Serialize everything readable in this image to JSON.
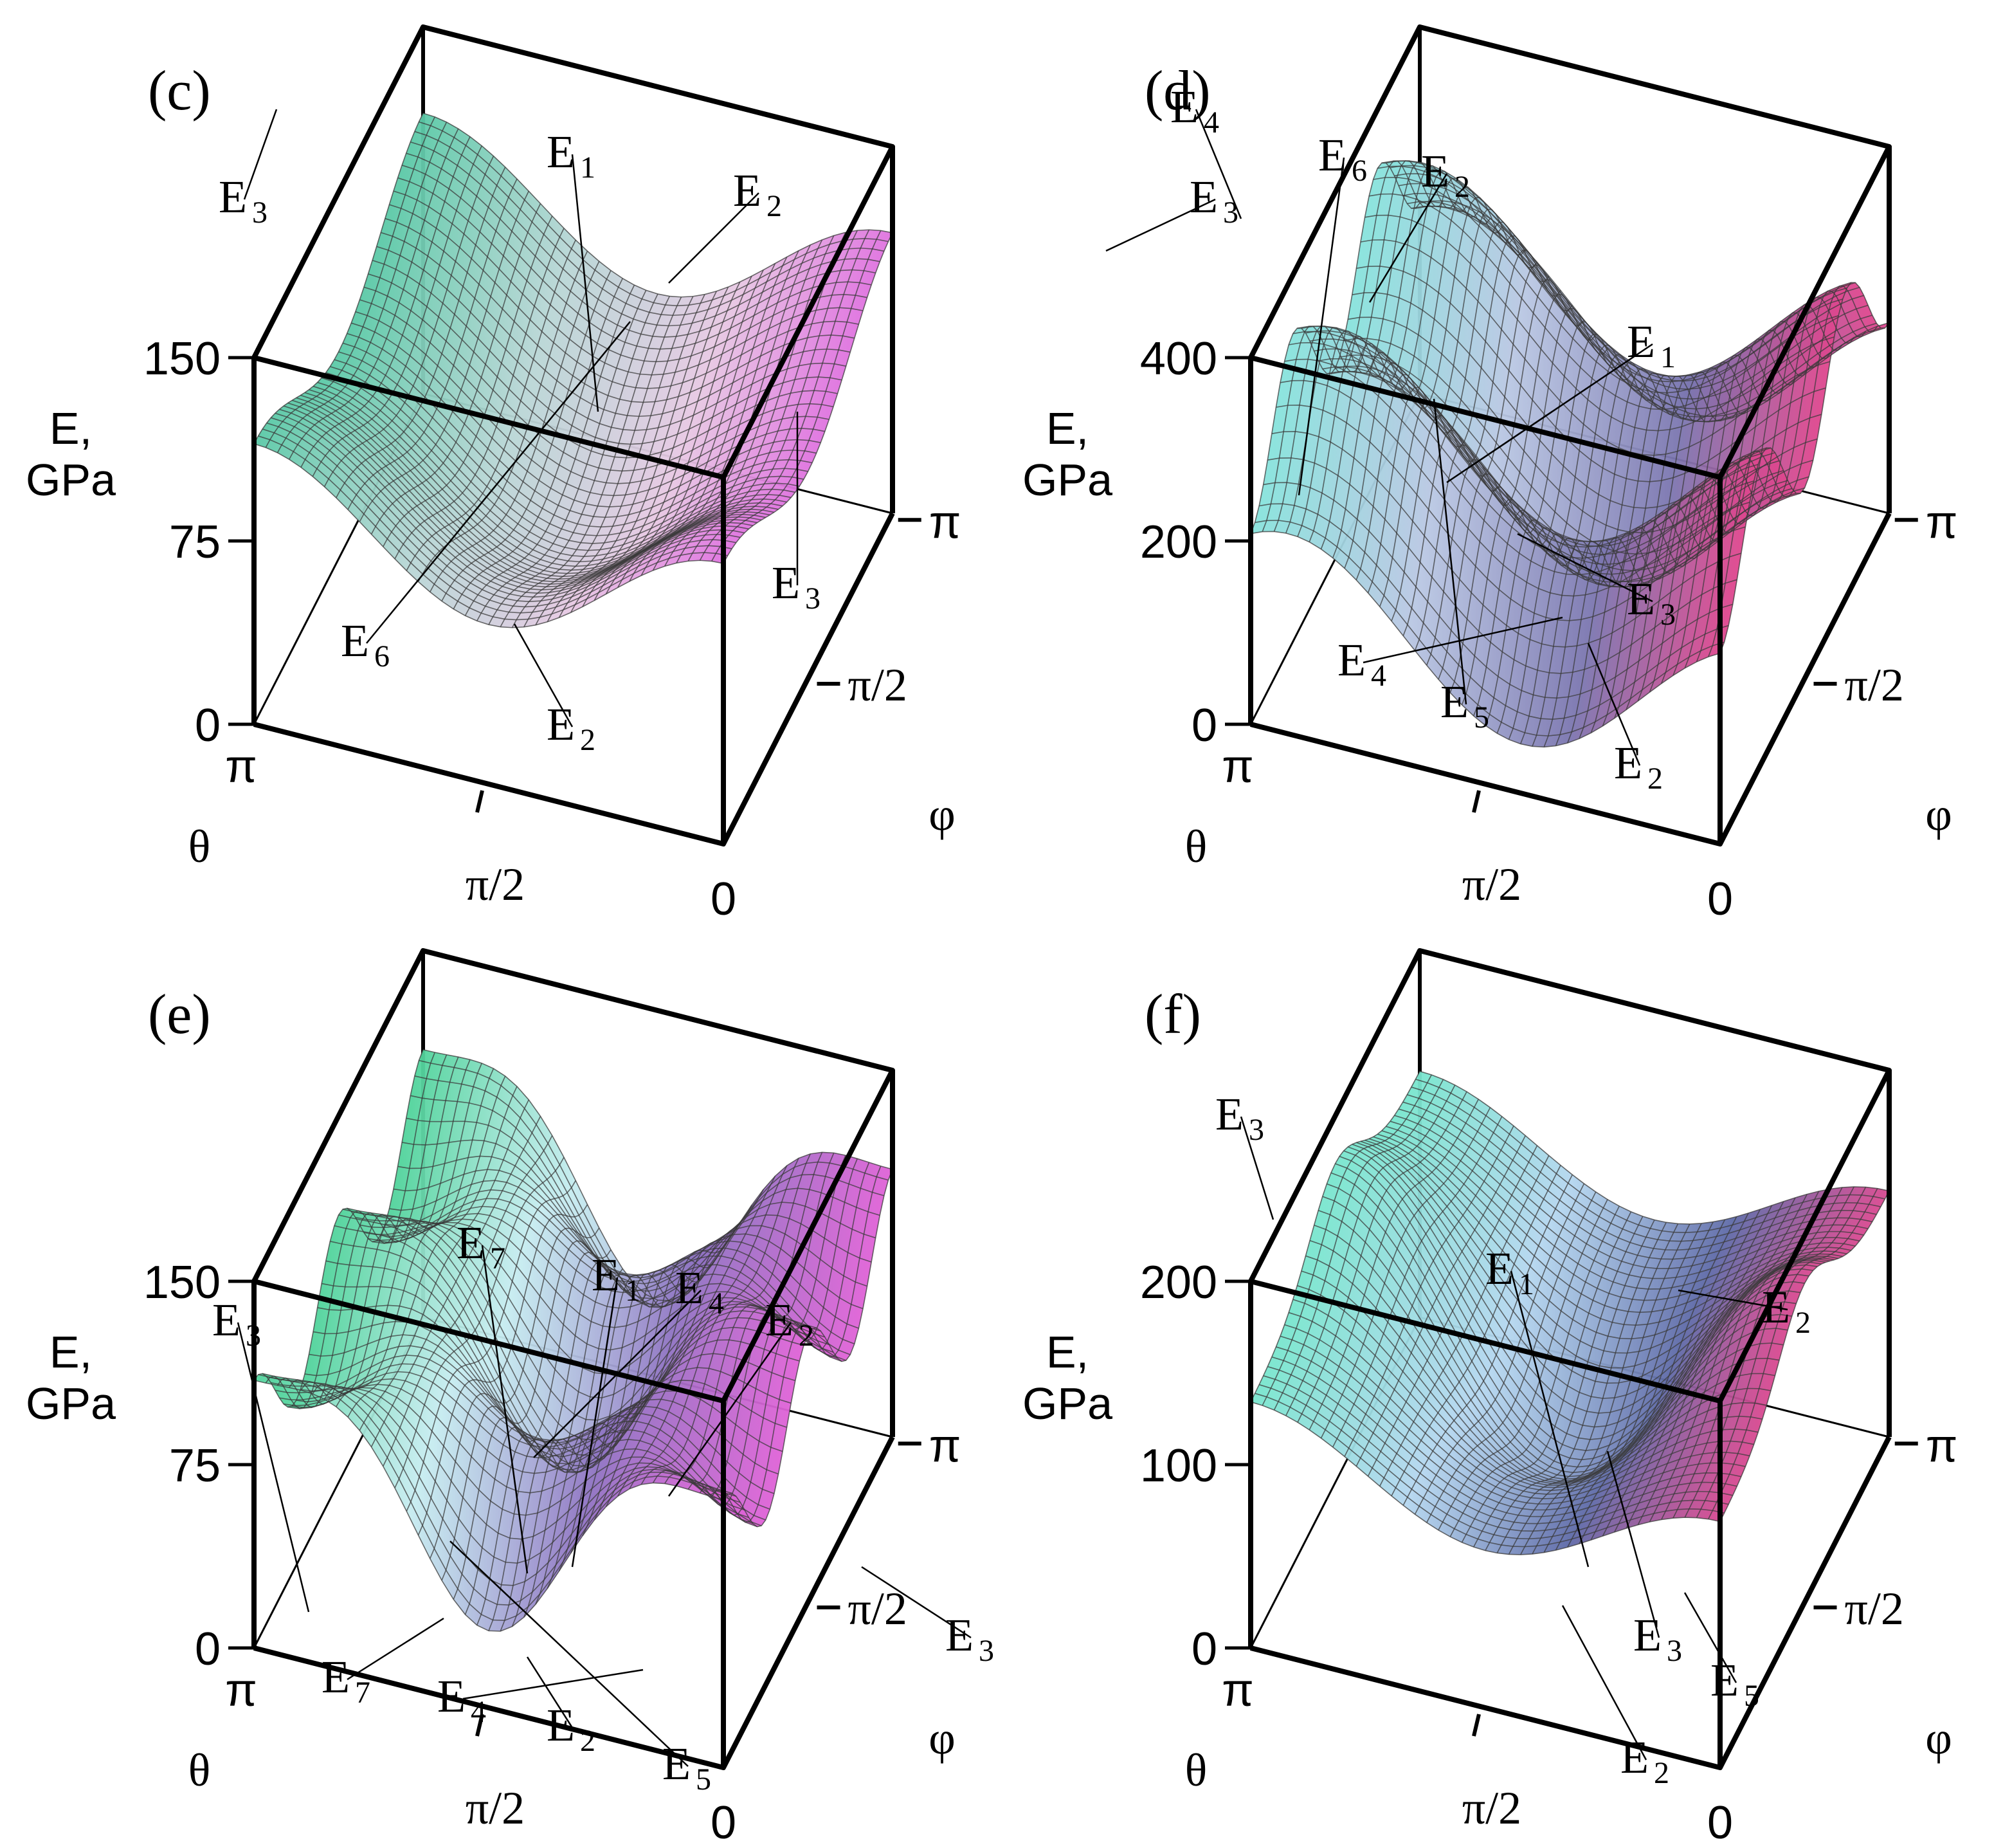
{
  "chart_data": [
    {
      "type": "surface3d",
      "panel_label": "(c)",
      "z_axis_label": [
        "E,",
        "GPa"
      ],
      "z_ticks": [
        "0",
        "75",
        "150"
      ],
      "theta_label": "θ",
      "theta_ticks": [
        "π",
        "π/2",
        "0"
      ],
      "phi_label": "φ",
      "phi_ticks": [
        "π/2",
        "π"
      ],
      "zlim": [
        0,
        150
      ],
      "annotations": [
        {
          "base": "E",
          "sub": "1"
        },
        {
          "base": "E",
          "sub": "2"
        },
        {
          "base": "E",
          "sub": "3"
        },
        {
          "base": "E",
          "sub": "3"
        },
        {
          "base": "E",
          "sub": "6"
        },
        {
          "base": "E",
          "sub": "2"
        }
      ]
    },
    {
      "type": "surface3d",
      "panel_label": "(d)",
      "z_axis_label": [
        "E,",
        "GPa"
      ],
      "z_ticks": [
        "0",
        "200",
        "400"
      ],
      "theta_label": "θ",
      "theta_ticks": [
        "π",
        "π/2",
        "0"
      ],
      "phi_label": "φ",
      "phi_ticks": [
        "π/2",
        "π"
      ],
      "zlim": [
        0,
        400
      ],
      "annotations": [
        {
          "base": "E",
          "sub": "4"
        },
        {
          "base": "E",
          "sub": "6"
        },
        {
          "base": "E",
          "sub": "2"
        },
        {
          "base": "E",
          "sub": "3"
        },
        {
          "base": "E",
          "sub": "1"
        },
        {
          "base": "E",
          "sub": "3"
        },
        {
          "base": "E",
          "sub": "4"
        },
        {
          "base": "E",
          "sub": "5"
        },
        {
          "base": "E",
          "sub": "2"
        }
      ]
    },
    {
      "type": "surface3d",
      "panel_label": "(e)",
      "z_axis_label": [
        "E,",
        "GPa"
      ],
      "z_ticks": [
        "0",
        "75",
        "150"
      ],
      "theta_label": "θ",
      "theta_ticks": [
        "π",
        "π/2",
        "0"
      ],
      "phi_label": "φ",
      "phi_ticks": [
        "π/2",
        "π"
      ],
      "zlim": [
        0,
        150
      ],
      "annotations": [
        {
          "base": "E",
          "sub": "7"
        },
        {
          "base": "E",
          "sub": "1"
        },
        {
          "base": "E",
          "sub": "4"
        },
        {
          "base": "E",
          "sub": "2"
        },
        {
          "base": "E",
          "sub": "3"
        },
        {
          "base": "E",
          "sub": "3"
        },
        {
          "base": "E",
          "sub": "7"
        },
        {
          "base": "E",
          "sub": "4"
        },
        {
          "base": "E",
          "sub": "2"
        },
        {
          "base": "E",
          "sub": "5"
        }
      ]
    },
    {
      "type": "surface3d",
      "panel_label": "(f)",
      "z_axis_label": [
        "E,",
        "GPa"
      ],
      "z_ticks": [
        "0",
        "100",
        "200"
      ],
      "theta_label": "θ",
      "theta_ticks": [
        "π",
        "π/2",
        "0"
      ],
      "phi_label": "φ",
      "phi_ticks": [
        "π/2",
        "π"
      ],
      "zlim": [
        0,
        200
      ],
      "annotations": [
        {
          "base": "E",
          "sub": "1"
        },
        {
          "base": "E",
          "sub": "2"
        },
        {
          "base": "E",
          "sub": "3"
        },
        {
          "base": "E",
          "sub": "3"
        },
        {
          "base": "E",
          "sub": "5"
        },
        {
          "base": "E",
          "sub": "2"
        }
      ]
    }
  ]
}
